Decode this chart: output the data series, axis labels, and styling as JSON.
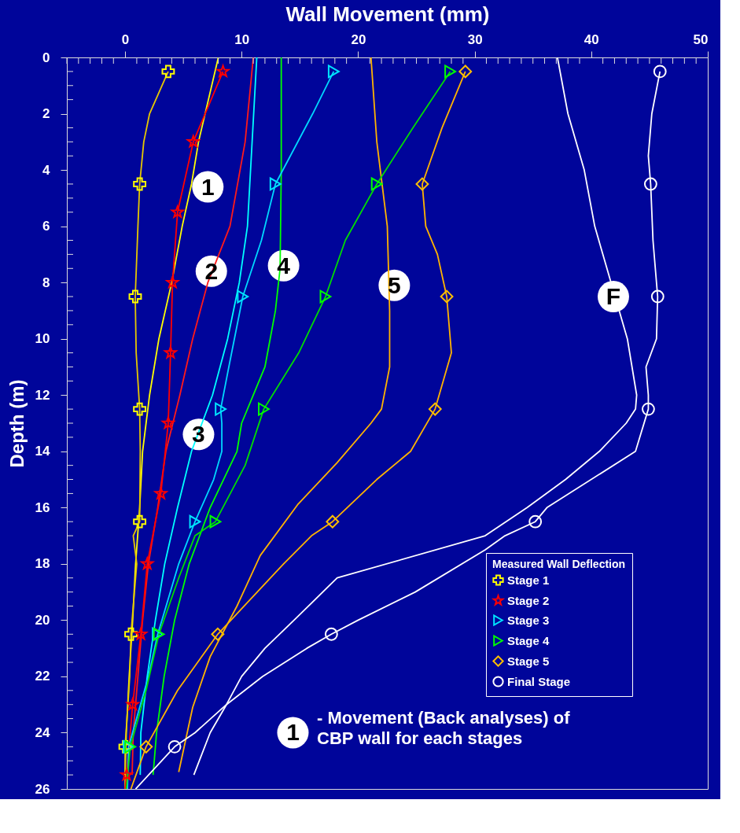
{
  "chart_data": {
    "type": "line",
    "xlabel": "Wall Movement (mm)",
    "ylabel": "Depth (m)",
    "legend_title": "Measured Wall Deflection",
    "legend": "bottom right",
    "grid": false,
    "xlim": [
      -5,
      50
    ],
    "ylim": [
      26,
      0
    ],
    "xticks": [
      {
        "value": -5,
        "label": null
      },
      {
        "value": -4,
        "label": null
      },
      {
        "value": -3,
        "label": null
      },
      {
        "value": -2,
        "label": null
      },
      {
        "value": -1,
        "label": null
      },
      0,
      {
        "value": 1,
        "label": null
      },
      {
        "value": 2,
        "label": null
      },
      {
        "value": 3,
        "label": null
      },
      {
        "value": 4,
        "label": null
      },
      {
        "value": 5,
        "label": null
      },
      {
        "value": 6,
        "label": null
      },
      {
        "value": 7,
        "label": null
      },
      {
        "value": 8,
        "label": null
      },
      {
        "value": 9,
        "label": null
      },
      10,
      {
        "value": 11,
        "label": null
      },
      {
        "value": 12,
        "label": null
      },
      {
        "value": 13,
        "label": null
      },
      {
        "value": 14,
        "label": null
      },
      {
        "value": 15,
        "label": null
      },
      {
        "value": 16,
        "label": null
      },
      {
        "value": 17,
        "label": null
      },
      {
        "value": 18,
        "label": null
      },
      {
        "value": 19,
        "label": null
      },
      20,
      {
        "value": 21,
        "label": null
      },
      {
        "value": 22,
        "label": null
      },
      {
        "value": 23,
        "label": null
      },
      {
        "value": 24,
        "label": null
      },
      {
        "value": 25,
        "label": null
      },
      {
        "value": 26,
        "label": null
      },
      {
        "value": 27,
        "label": null
      },
      {
        "value": 28,
        "label": null
      },
      {
        "value": 29,
        "label": null
      },
      30,
      {
        "value": 31,
        "label": null
      },
      {
        "value": 32,
        "label": null
      },
      {
        "value": 33,
        "label": null
      },
      {
        "value": 34,
        "label": null
      },
      {
        "value": 35,
        "label": null
      },
      {
        "value": 36,
        "label": null
      },
      {
        "value": 37,
        "label": null
      },
      {
        "value": 38,
        "label": null
      },
      {
        "value": 39,
        "label": null
      },
      40,
      {
        "value": 41,
        "label": null
      },
      {
        "value": 42,
        "label": null
      },
      {
        "value": 43,
        "label": null
      },
      {
        "value": 44,
        "label": null
      },
      {
        "value": 45,
        "label": null
      },
      {
        "value": 46,
        "label": null
      },
      {
        "value": 47,
        "label": null
      },
      {
        "value": 48,
        "label": null
      },
      {
        "value": 49,
        "label": null
      },
      50
    ],
    "yticks": [
      0,
      {
        "value": 0.5,
        "label": null
      },
      {
        "value": 1,
        "label": null
      },
      {
        "value": 1.5,
        "label": null
      },
      2,
      {
        "value": 2.5,
        "label": null
      },
      {
        "value": 3,
        "label": null
      },
      {
        "value": 3.5,
        "label": null
      },
      4,
      {
        "value": 4.5,
        "label": null
      },
      {
        "value": 5,
        "label": null
      },
      {
        "value": 5.5,
        "label": null
      },
      6,
      {
        "value": 6.5,
        "label": null
      },
      {
        "value": 7,
        "label": null
      },
      {
        "value": 7.5,
        "label": null
      },
      8,
      {
        "value": 8.5,
        "label": null
      },
      {
        "value": 9,
        "label": null
      },
      {
        "value": 9.5,
        "label": null
      },
      10,
      {
        "value": 10.5,
        "label": null
      },
      {
        "value": 11,
        "label": null
      },
      {
        "value": 11.5,
        "label": null
      },
      12,
      {
        "value": 12.5,
        "label": null
      },
      {
        "value": 13,
        "label": null
      },
      {
        "value": 13.5,
        "label": null
      },
      14,
      {
        "value": 14.5,
        "label": null
      },
      {
        "value": 15,
        "label": null
      },
      {
        "value": 15.5,
        "label": null
      },
      16,
      {
        "value": 16.5,
        "label": null
      },
      {
        "value": 17,
        "label": null
      },
      {
        "value": 17.5,
        "label": null
      },
      18,
      {
        "value": 18.5,
        "label": null
      },
      {
        "value": 19,
        "label": null
      },
      {
        "value": 19.5,
        "label": null
      },
      20,
      {
        "value": 20.5,
        "label": null
      },
      {
        "value": 21,
        "label": null
      },
      {
        "value": 21.5,
        "label": null
      },
      22,
      {
        "value": 22.5,
        "label": null
      },
      {
        "value": 23,
        "label": null
      },
      {
        "value": 23.5,
        "label": null
      },
      24,
      {
        "value": 24.5,
        "label": null
      },
      {
        "value": 25,
        "label": null
      },
      {
        "value": 25.5,
        "label": null
      },
      26
    ],
    "series": [
      {
        "type": "line",
        "color": "#ffff00",
        "x": [
          8.0,
          6.3,
          5.7,
          4.9,
          4.0,
          2.9,
          2.1,
          1.5,
          1.25,
          0.9,
          0.65,
          0.35,
          0.1,
          0
        ],
        "values": [
          0,
          3,
          4.5,
          6,
          8,
          10,
          12,
          14,
          16,
          18,
          20,
          22,
          24,
          25.5
        ]
      },
      {
        "type": "line",
        "color": "#ff1a1a",
        "x": [
          11.0,
          10.3,
          9.0,
          7.1,
          5.8,
          4.7,
          3.5,
          2.8,
          2.0,
          1.5,
          1.1,
          0.7,
          0.6
        ],
        "values": [
          0,
          3,
          6,
          8,
          10,
          12,
          14,
          16,
          18,
          20,
          22,
          24,
          25.5
        ]
      },
      {
        "type": "line",
        "color": "#00ffff",
        "x": [
          11.3,
          10.9,
          10.5,
          9.8,
          8.8,
          7.5,
          5.7,
          4.5,
          3.4,
          2.6,
          1.9,
          1.35,
          1.3
        ],
        "values": [
          0,
          3,
          6,
          8,
          10,
          12,
          14,
          16,
          18,
          20,
          22,
          24,
          25.5
        ]
      },
      {
        "type": "line",
        "color": "#00ff00",
        "x": [
          13.4,
          13.4,
          13.3,
          12.9,
          12.0,
          10.0,
          9.6,
          7.3,
          5.5,
          4.25,
          3.35,
          2.7,
          2.4
        ],
        "values": [
          0,
          4,
          7.5,
          9,
          11,
          13,
          14,
          16,
          18,
          20,
          22,
          24,
          25.5
        ]
      },
      {
        "type": "line",
        "color": "#ffb400",
        "x": [
          21.1,
          21.6,
          22.5,
          22.7,
          22.7,
          22.0,
          21.1,
          18.2,
          14.8,
          11.6,
          9.6,
          7.3,
          5.8,
          4.6
        ],
        "values": [
          0,
          3,
          6,
          9,
          11,
          12.5,
          13,
          14.4,
          15.9,
          17.7,
          19.5,
          21.3,
          23.1,
          25.4
        ]
      },
      {
        "type": "line",
        "color": "#ffffff",
        "x": [
          37.1,
          38.0,
          39.4,
          40.3,
          41.7,
          43.1,
          43.9,
          43.8,
          43.0,
          40.7,
          37.8,
          34.5,
          30.9,
          18.2,
          14.5,
          12.0,
          10.0,
          8.7,
          7.3,
          5.9
        ],
        "values": [
          0,
          2,
          4,
          6,
          8,
          10,
          12,
          12.5,
          13,
          14,
          15,
          16,
          17,
          18.5,
          20,
          21,
          22,
          23,
          24,
          25.5
        ]
      },
      {
        "type": "line",
        "color": "#e6c800",
        "x": [
          3.7,
          2.1,
          1.6,
          1.25,
          1.1,
          0.87,
          0.95,
          1.25,
          1.3,
          1.25,
          0.7,
          1.0,
          0.5,
          0.4,
          0,
          0
        ],
        "values": [
          0.5,
          2,
          3,
          4.5,
          6,
          8.5,
          10.5,
          12.5,
          14,
          16.5,
          17,
          18,
          20.5,
          22,
          24.5,
          26
        ]
      },
      {
        "type": "line",
        "color": "#ff0000",
        "x": [
          8.4,
          5.85,
          4.5,
          4.07,
          3.9,
          3.7,
          3.07,
          1.9,
          1.35,
          0.65,
          0.13,
          0
        ],
        "values": [
          0.5,
          3,
          5.5,
          8,
          10.5,
          13,
          15.5,
          18,
          20.5,
          23,
          25.5,
          26
        ]
      },
      {
        "type": "line",
        "color": "#00d8ff",
        "x": [
          17.9,
          16.1,
          12.9,
          11.7,
          10.1,
          8.9,
          8.2,
          8.3,
          8.3,
          7.6,
          6.0,
          4.6,
          2.8,
          2.0,
          0.3,
          0.2
        ],
        "values": [
          0.5,
          2,
          4.5,
          6.5,
          8.5,
          11,
          12.5,
          13,
          14,
          15,
          16.5,
          18,
          20.5,
          22,
          24.5,
          26
        ]
      },
      {
        "type": "line",
        "color": "#00dd00",
        "x": [
          27.9,
          24.7,
          21.6,
          18.9,
          17.2,
          14.9,
          11.9,
          10.3,
          7.75,
          6.0,
          4.6,
          2.9,
          1.8,
          0.45,
          0.1
        ],
        "values": [
          0.5,
          2.5,
          4.5,
          6.5,
          8.5,
          10.5,
          12.5,
          14.5,
          16.5,
          17,
          18.5,
          20.5,
          22.5,
          24.5,
          26
        ]
      },
      {
        "type": "line",
        "color": "#ffb400",
        "x": [
          29.2,
          27.2,
          25.5,
          25.8,
          26.8,
          27.6,
          28.0,
          26.6,
          24.5,
          21.6,
          17.8,
          16.0,
          13.6,
          7.95,
          4.5,
          1.8,
          0.5
        ],
        "values": [
          0.5,
          2.5,
          4.5,
          6,
          7,
          8.5,
          10.5,
          12.5,
          14,
          15,
          16.5,
          17,
          18,
          20.5,
          22.5,
          24.5,
          26
        ]
      },
      {
        "type": "line",
        "color": "#ffffff",
        "x": [
          45.9,
          45.2,
          44.9,
          45.1,
          45.3,
          45.7,
          45.6,
          44.7,
          44.9,
          44.9,
          43.8,
          36.2,
          35.2,
          32.6,
          30.9,
          24.9,
          20.0,
          17.7,
          15.6,
          11.8,
          8.7,
          6.0,
          4.25,
          0.9
        ],
        "values": [
          0.5,
          2,
          3.5,
          4.5,
          6.5,
          8.5,
          10,
          11,
          12,
          12.5,
          14,
          16,
          16.5,
          17,
          17.5,
          19,
          20,
          20.5,
          21,
          22,
          23,
          24,
          24.5,
          26
        ]
      },
      {
        "type": "scatter",
        "name": "Stage 1",
        "color": "#ffff00",
        "marker": "cross",
        "x": [
          3.7,
          1.25,
          0.87,
          1.25,
          1.25,
          0.5,
          0
        ],
        "values": [
          0.5,
          4.5,
          8.5,
          12.5,
          16.5,
          20.5,
          24.5
        ]
      },
      {
        "type": "scatter",
        "name": "Stage 2",
        "color": "#ff0000",
        "marker": "star",
        "x": [
          8.4,
          5.85,
          4.5,
          4.07,
          3.9,
          3.7,
          3.07,
          1.9,
          1.35,
          0.65,
          0.13
        ],
        "values": [
          0.5,
          3,
          5.5,
          8,
          10.5,
          13,
          15.5,
          18,
          20.5,
          23,
          25.5
        ]
      },
      {
        "type": "scatter",
        "name": "Stage 3",
        "color": "#00e5ff",
        "marker": "triangle",
        "x": [
          17.9,
          12.9,
          10.1,
          8.2,
          6.0,
          2.8,
          0.3
        ],
        "values": [
          0.5,
          4.5,
          8.5,
          12.5,
          16.5,
          20.5,
          24.5
        ]
      },
      {
        "type": "scatter",
        "name": "Stage 4",
        "color": "#00ff00",
        "marker": "triangle",
        "x": [
          27.9,
          21.6,
          17.2,
          11.9,
          7.75,
          2.9,
          0.45
        ],
        "values": [
          0.5,
          4.5,
          8.5,
          12.5,
          16.5,
          20.5,
          24.5
        ]
      },
      {
        "type": "scatter",
        "name": "Stage 5",
        "color": "#ffc000",
        "marker": "diamond",
        "x": [
          29.2,
          25.5,
          27.6,
          26.6,
          17.8,
          7.95,
          1.8
        ],
        "values": [
          0.5,
          4.5,
          8.5,
          12.5,
          16.5,
          20.5,
          24.5
        ]
      },
      {
        "type": "scatter",
        "name": "Final Stage",
        "color": "#ffffff",
        "marker": "circle",
        "x": [
          45.9,
          45.1,
          45.7,
          44.9,
          35.2,
          17.7,
          4.25
        ],
        "values": [
          0.5,
          4.5,
          8.5,
          12.5,
          16.5,
          20.5,
          24.5
        ]
      }
    ],
    "annotations": [
      {
        "text": "1",
        "x": 7.1,
        "y": 4.6
      },
      {
        "text": "2",
        "x": 7.4,
        "y": 7.6
      },
      {
        "text": "3",
        "x": 6.3,
        "y": 13.4
      },
      {
        "text": "4",
        "x": 13.6,
        "y": 7.4
      },
      {
        "text": "5",
        "x": 23.1,
        "y": 8.1
      },
      {
        "text": "F",
        "x": 41.9,
        "y": 8.5
      },
      {
        "text": "1",
        "x": 14.4,
        "y": 24.0
      },
      "- Movement (Back analyses) of\nCBP wall for each stages"
    ]
  }
}
